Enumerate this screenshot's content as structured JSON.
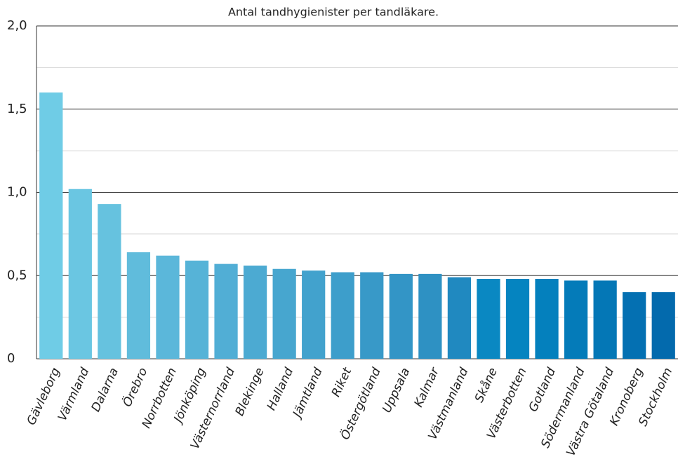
{
  "chart_data": {
    "type": "bar",
    "title": "Antal tandhygienister per tandläkare.",
    "categories": [
      "Gävleborg",
      "Värmland",
      "Dalarna",
      "Örebro",
      "Norrbotten",
      "Jönköping",
      "Västernorrland",
      "Blekinge",
      "Halland",
      "Jämtland",
      "Riket",
      "Östergötland",
      "Uppsala",
      "Kalmar",
      "Västmanland",
      "Skåne",
      "Västerbotten",
      "Gotland",
      "Södermanland",
      "Västra Götaland",
      "Kronoberg",
      "Stockholm"
    ],
    "values": [
      1.6,
      1.02,
      0.93,
      0.64,
      0.62,
      0.59,
      0.57,
      0.56,
      0.54,
      0.53,
      0.52,
      0.52,
      0.51,
      0.51,
      0.49,
      0.48,
      0.48,
      0.48,
      0.47,
      0.47,
      0.4,
      0.4
    ],
    "colors": [
      "#6fcce6",
      "#6ac6e2",
      "#66c2df",
      "#60bcdc",
      "#5bb7da",
      "#56b3d7",
      "#51aed5",
      "#4caad2",
      "#47a6cf",
      "#42a2cd",
      "#3d9ecb",
      "#3899c8",
      "#3395c6",
      "#2e91c3",
      "#2089c0",
      "#0a88c2",
      "#0584c0",
      "#0480bd",
      "#047bb9",
      "#0477b6",
      "#0470b2",
      "#036aad"
    ],
    "ylim": [
      0,
      2.0
    ],
    "yticks": [
      0,
      {
        "value": 0.5,
        "label": "0,5"
      },
      {
        "value": 1.0,
        "label": "1,0"
      },
      {
        "value": 1.5,
        "label": "1,5"
      },
      {
        "value": 2.0,
        "label": "2,0"
      }
    ],
    "minor_yticks": [
      0.25,
      0.75,
      1.25,
      1.75
    ],
    "grid": true
  }
}
